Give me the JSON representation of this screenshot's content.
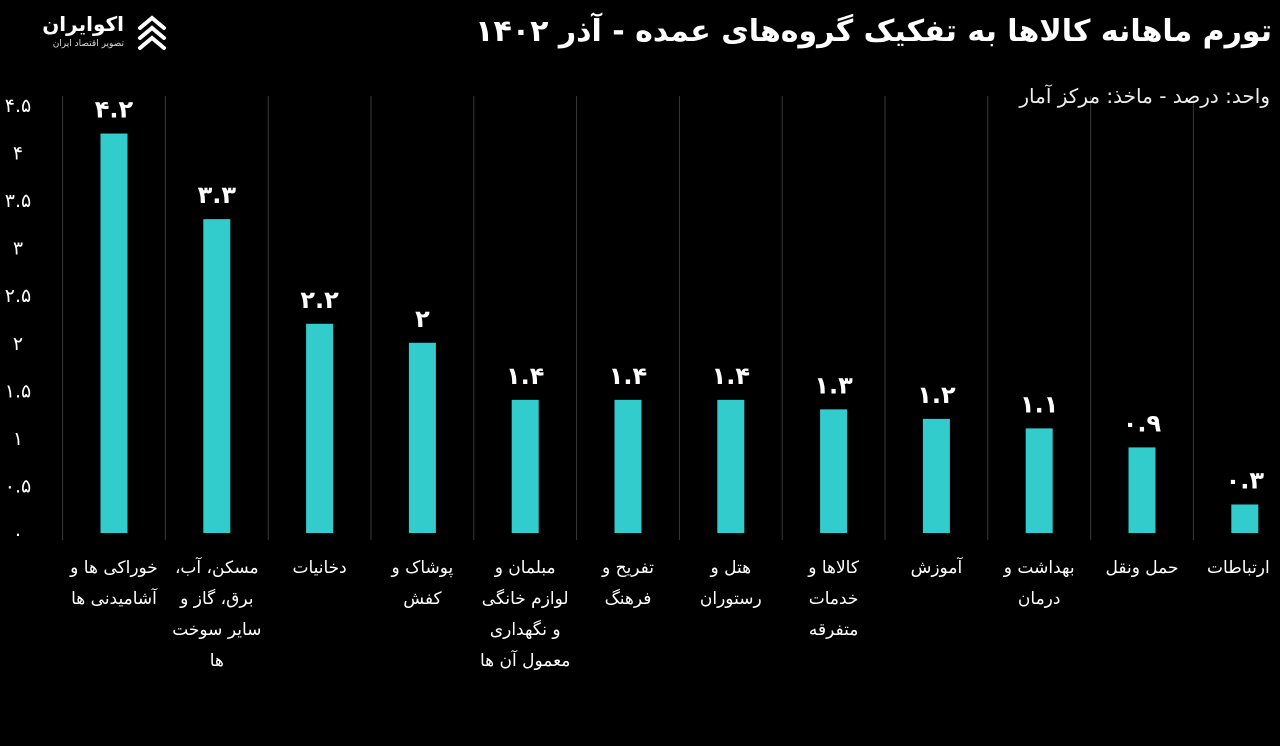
{
  "header": {
    "title": "تورم ماهانه کالاها به تفکیک گروه‌های عمده - آذر ۱۴۰۲",
    "subtitle": "واحد: درصد - ماخذ: مرکز آمار"
  },
  "logo": {
    "name": "اکوایران",
    "tagline": "تصویر اقتصاد ایران",
    "icon": "ecoiran-logo-icon"
  },
  "colors": {
    "bar": "#33CCCC",
    "background": "#000000",
    "grid": "#3a3a3a",
    "text": "#ffffff"
  },
  "chart_data": {
    "type": "bar",
    "categories": [
      "خوراکی ها و آشامیدنی ها",
      "مسکن، آب، برق، گاز و سایر سوخت ها",
      "دخانیات",
      "پوشاک و کفش",
      "مبلمان و لوازم خانگی و نگهداری معمول آن ها",
      "تفریح و فرهنگ",
      "هتل و رستوران",
      "کالاها و خدمات متفرقه",
      "آموزش",
      "بهداشت و درمان",
      "حمل ونقل",
      "ارتباطات"
    ],
    "values": [
      4.2,
      3.3,
      2.2,
      2,
      1.4,
      1.4,
      1.4,
      1.3,
      1.2,
      1.1,
      0.9,
      0.3
    ],
    "value_labels": [
      "۴.۲",
      "۳.۳",
      "۲.۲",
      "۲",
      "۱.۴",
      "۱.۴",
      "۱.۴",
      "۱.۳",
      "۱.۲",
      "۱.۱",
      "۰.۹",
      "۰.۳"
    ],
    "yticks": [
      0,
      0.5,
      1,
      1.5,
      2,
      2.5,
      3,
      3.5,
      4,
      4.5
    ],
    "ytick_labels": [
      "۰",
      "۰.۵",
      "۱",
      "۱.۵",
      "۲",
      "۲.۵",
      "۳",
      "۳.۵",
      "۴",
      "۴.۵"
    ],
    "ylim": [
      0,
      4.5
    ],
    "grid": "vertical separators",
    "legend": "none"
  }
}
